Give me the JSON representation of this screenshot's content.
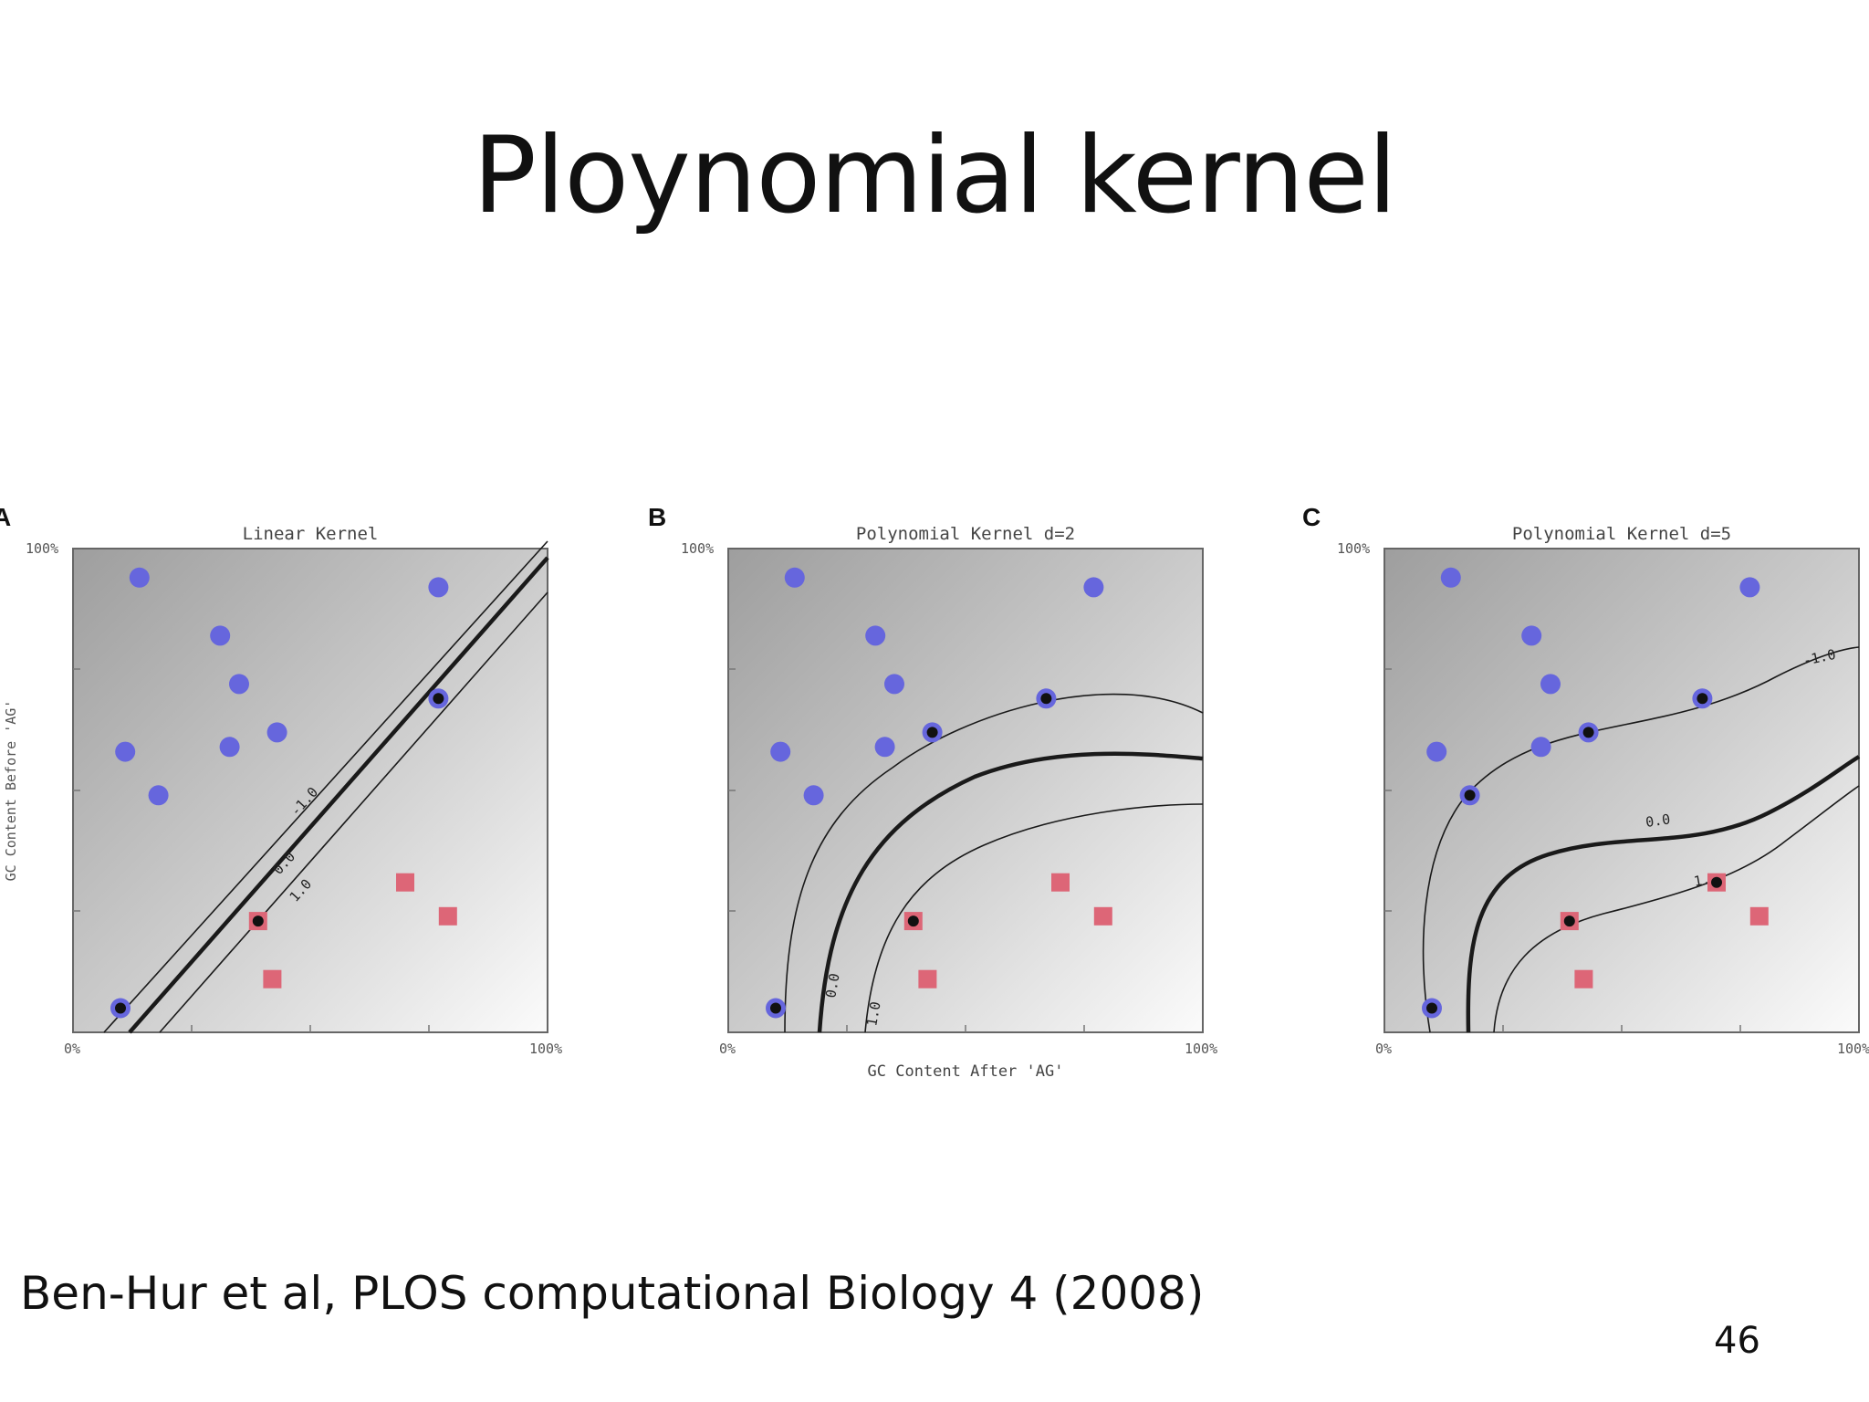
{
  "slide": {
    "title": "Ploynomial kernel",
    "citation": "Ben-Hur et al, PLOS computational Biology 4 (2008)",
    "page_number": "46"
  },
  "colors": {
    "circle_class": "#6666dd",
    "square_class": "#dd6677",
    "support_vector": "#111111",
    "contour": "#1a1a1a"
  },
  "chart_data": [
    {
      "type": "scatter",
      "panel_letter": "A",
      "title": "Linear Kernel",
      "xlabel": "",
      "ylabel": "GC Content Before 'AG'",
      "x_ticks": [
        "0%",
        "100%"
      ],
      "y_ticks": [
        "100%"
      ],
      "xlim": [
        0,
        100
      ],
      "ylim": [
        0,
        100
      ],
      "contour_labels": [
        "-1.0",
        "0.0",
        "1.0"
      ],
      "series": [
        {
          "marker": "circle",
          "points": [
            [
              14,
              94
            ],
            [
              31,
              82
            ],
            [
              35,
              72
            ],
            [
              43,
              62
            ],
            [
              33,
              59
            ],
            [
              11,
              58
            ],
            [
              18,
              49
            ],
            [
              77,
              69
            ],
            [
              10,
              5
            ],
            [
              77,
              92
            ]
          ],
          "support": [
            7,
            8
          ]
        },
        {
          "marker": "square",
          "points": [
            [
              70,
              31
            ],
            [
              79,
              24
            ],
            [
              39,
              23
            ],
            [
              42,
              11
            ]
          ],
          "support": [
            2
          ]
        }
      ]
    },
    {
      "type": "scatter",
      "panel_letter": "B",
      "title": "Polynomial Kernel d=2",
      "xlabel": "GC Content After 'AG'",
      "ylabel": "",
      "x_ticks": [
        "0%",
        "100%"
      ],
      "y_ticks": [
        "100%"
      ],
      "xlim": [
        0,
        100
      ],
      "ylim": [
        0,
        100
      ],
      "contour_labels": [
        "0.0",
        "1.0"
      ],
      "series": [
        {
          "marker": "circle",
          "points": [
            [
              14,
              94
            ],
            [
              31,
              82
            ],
            [
              35,
              72
            ],
            [
              43,
              62
            ],
            [
              33,
              59
            ],
            [
              11,
              58
            ],
            [
              18,
              49
            ],
            [
              67,
              69
            ],
            [
              10,
              5
            ],
            [
              77,
              92
            ]
          ],
          "support": [
            3,
            7,
            8
          ]
        },
        {
          "marker": "square",
          "points": [
            [
              70,
              31
            ],
            [
              79,
              24
            ],
            [
              39,
              23
            ],
            [
              42,
              11
            ]
          ],
          "support": [
            2
          ]
        }
      ]
    },
    {
      "type": "scatter",
      "panel_letter": "C",
      "title": "Polynomial Kernel d=5",
      "xlabel": "",
      "ylabel": "",
      "x_ticks": [
        "0%",
        "100%"
      ],
      "y_ticks": [
        "100%"
      ],
      "xlim": [
        0,
        100
      ],
      "ylim": [
        0,
        100
      ],
      "contour_labels": [
        "-1.0",
        "0.0",
        "1."
      ],
      "series": [
        {
          "marker": "circle",
          "points": [
            [
              14,
              94
            ],
            [
              31,
              82
            ],
            [
              35,
              72
            ],
            [
              43,
              62
            ],
            [
              33,
              59
            ],
            [
              11,
              58
            ],
            [
              18,
              49
            ],
            [
              67,
              69
            ],
            [
              10,
              5
            ],
            [
              77,
              92
            ]
          ],
          "support": [
            3,
            6,
            7,
            8
          ]
        },
        {
          "marker": "square",
          "points": [
            [
              70,
              31
            ],
            [
              79,
              24
            ],
            [
              39,
              23
            ],
            [
              42,
              11
            ]
          ],
          "support": [
            0,
            2
          ]
        }
      ]
    }
  ]
}
